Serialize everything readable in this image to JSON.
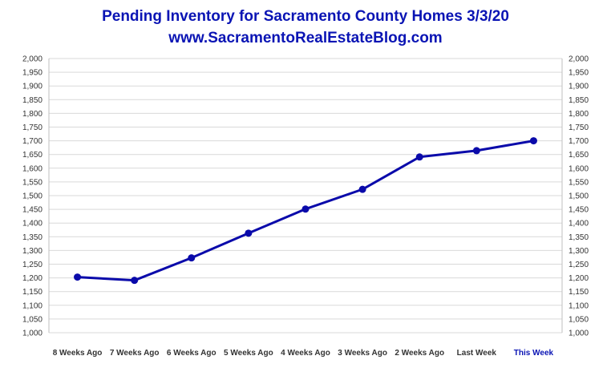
{
  "chart_data": {
    "type": "line",
    "title": "Pending Inventory for Sacramento County Homes 3/3/20",
    "subtitle": "www.SacramentoRealEstateBlog.com",
    "categories": [
      "8 Weeks Ago",
      "7 Weeks Ago",
      "6 Weeks Ago",
      "5 Weeks Ago",
      "4 Weeks Ago",
      "3 Weeks Ago",
      "2 Weeks Ago",
      "Last Week",
      "This Week"
    ],
    "highlight_category": "This Week",
    "series": [
      {
        "values": [
          1203,
          1191,
          1273,
          1363,
          1451,
          1523,
          1641,
          1664,
          1700
        ]
      }
    ],
    "ylim": [
      1000,
      2000
    ],
    "ytick_step": 50,
    "ytick_labels": [
      "1,000",
      "1,050",
      "1,100",
      "1,150",
      "1,200",
      "1,250",
      "1,300",
      "1,350",
      "1,400",
      "1,450",
      "1,500",
      "1,550",
      "1,600",
      "1,650",
      "1,700",
      "1,750",
      "1,800",
      "1,850",
      "1,900",
      "1,950",
      "2,000"
    ],
    "secondary_axis": true,
    "grid": true,
    "xlabel": "",
    "ylabel": "",
    "colors": {
      "line": "#0a0aaa",
      "title": "#0a14b4",
      "grid": "#d9d9d9",
      "axis_text": "#333333"
    }
  }
}
